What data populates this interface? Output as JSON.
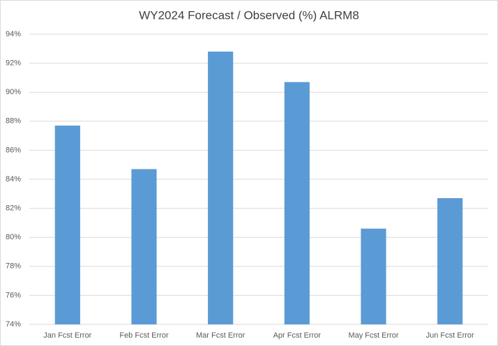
{
  "chart_data": {
    "type": "bar",
    "title": "WY2024 Forecast / Observed (%) ALRM8",
    "categories": [
      "Jan Fcst Error",
      "Feb Fcst Error",
      "Mar Fcst Error",
      "Apr Fcst Error",
      "May Fcst Error",
      "Jun Fcst Error"
    ],
    "values": [
      87.7,
      84.7,
      92.8,
      90.7,
      80.6,
      82.7
    ],
    "color": "#5b9bd5",
    "ylim": [
      74,
      94
    ],
    "yticks": [
      {
        "value": 74,
        "label": "74%"
      },
      {
        "value": 76,
        "label": "76%"
      },
      {
        "value": 78,
        "label": "78%"
      },
      {
        "value": 80,
        "label": "80%"
      },
      {
        "value": 82,
        "label": "82%"
      },
      {
        "value": 84,
        "label": "84%"
      },
      {
        "value": 86,
        "label": "86%"
      },
      {
        "value": 88,
        "label": "88%"
      },
      {
        "value": 90,
        "label": "90%"
      },
      {
        "value": 92,
        "label": "92%"
      },
      {
        "value": 94,
        "label": "94%"
      }
    ],
    "grid": true
  }
}
